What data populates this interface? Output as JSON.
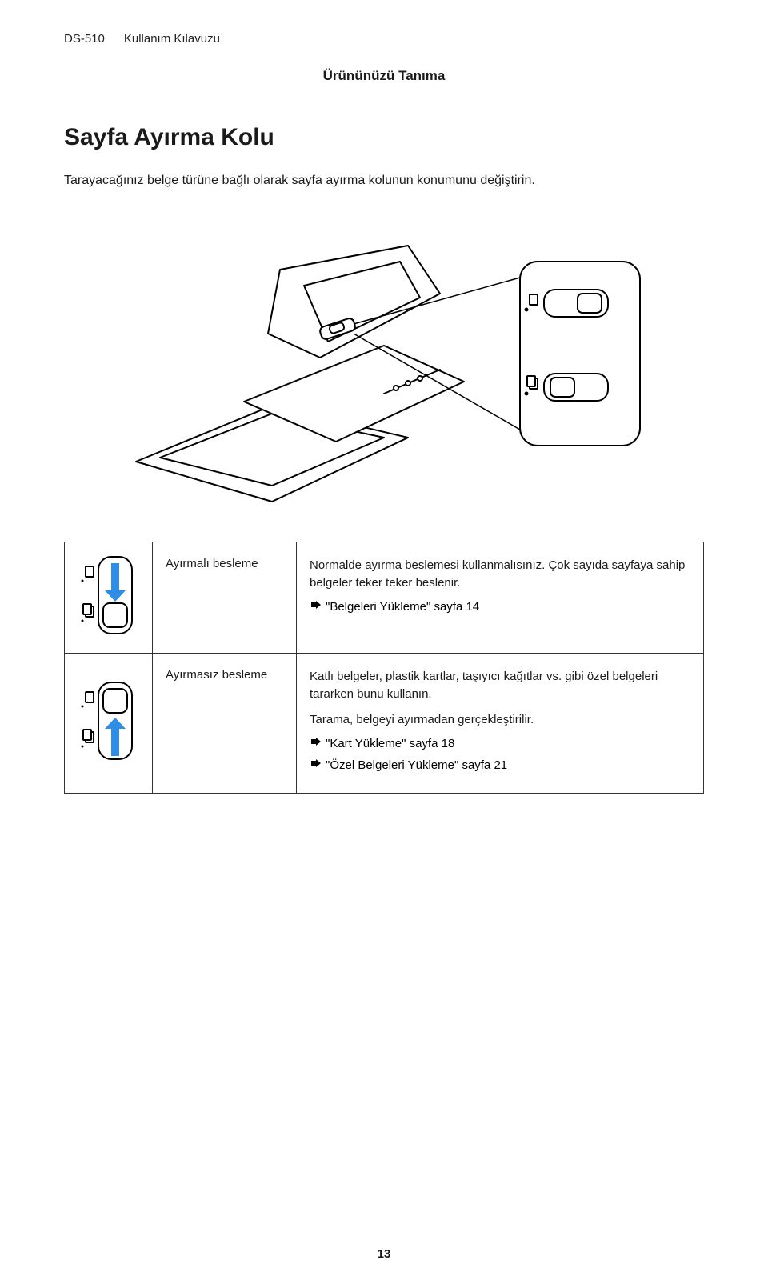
{
  "header": {
    "model": "DS-510",
    "guide_label": "Kullanım Kılavuzu"
  },
  "chapter": "Ürününüzü Tanıma",
  "section_title": "Sayfa Ayırma Kolu",
  "intro": "Tarayacağınız belge türüne bağlı olarak sayfa ayırma kolunun konumunu değiştirin.",
  "arrow_color": "#2e8de5",
  "table": {
    "rows": [
      {
        "mode": "Ayırmalı besleme",
        "arrow_direction": "down",
        "desc": [
          "Normalde ayırma beslemesi kullanmalısınız. Çok sayıda sayfaya sahip belgeler teker teker beslenir."
        ],
        "links": [
          "\"Belgeleri Yükleme\" sayfa 14"
        ]
      },
      {
        "mode": "Ayırmasız besleme",
        "arrow_direction": "up",
        "desc": [
          "Katlı belgeler, plastik kartlar, taşıyıcı kağıtlar vs. gibi özel belgeleri tararken bunu kullanın.",
          "Tarama, belgeyi ayırmadan gerçekleştirilir."
        ],
        "links": [
          "\"Kart Yükleme\" sayfa 18",
          "\"Özel Belgeleri Yükleme\" sayfa 21"
        ]
      }
    ]
  },
  "page_number": "13"
}
